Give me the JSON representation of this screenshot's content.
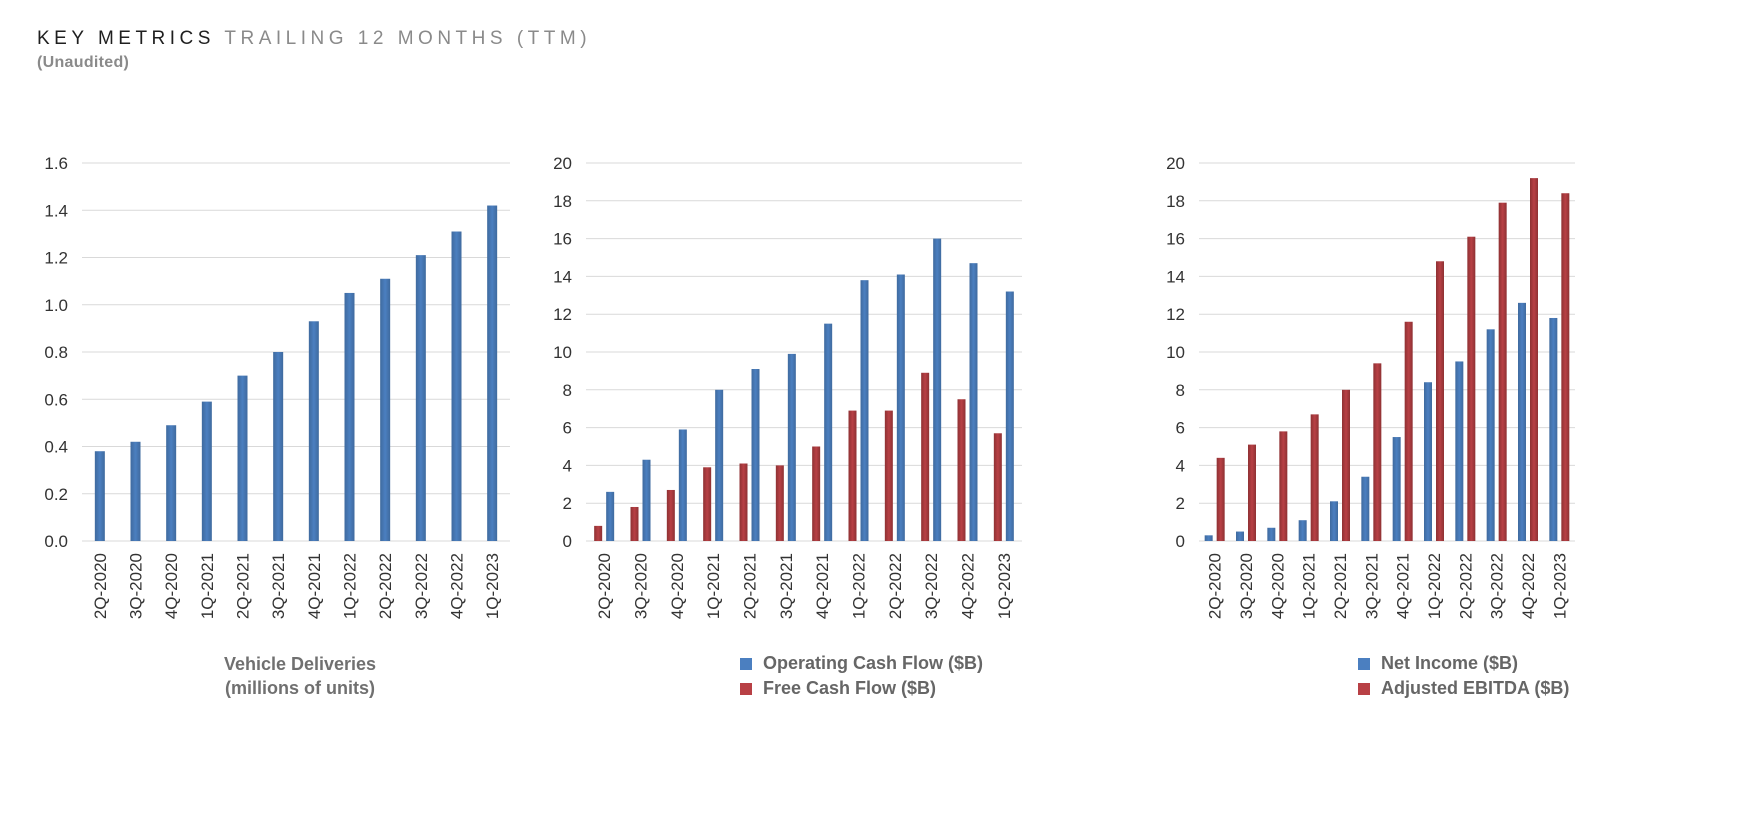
{
  "header": {
    "title_strong": "KEY METRICS",
    "title_light": "TRAILING 12 MONTHS (TTM)",
    "subtitle": "(Unaudited)"
  },
  "colors": {
    "blue": "#3f6a9e",
    "blue_light": "#4b7fc0",
    "red": "#8e3133",
    "red_light": "#b84045"
  },
  "chart_data": [
    {
      "type": "bar",
      "categories": [
        "2Q-2020",
        "3Q-2020",
        "4Q-2020",
        "1Q-2021",
        "2Q-2021",
        "3Q-2021",
        "4Q-2021",
        "1Q-2022",
        "2Q-2022",
        "3Q-2022",
        "4Q-2022",
        "1Q-2023"
      ],
      "series": [
        {
          "name": "Vehicle Deliveries (millions of units)",
          "values": [
            0.38,
            0.42,
            0.49,
            0.59,
            0.7,
            0.8,
            0.93,
            1.05,
            1.11,
            1.21,
            1.31,
            1.42
          ]
        }
      ],
      "ylim": [
        0,
        1.6
      ],
      "yticks": [
        "0.0",
        "0.2",
        "0.4",
        "0.6",
        "0.8",
        "1.0",
        "1.2",
        "1.4",
        "1.6"
      ],
      "caption": [
        "Vehicle Deliveries",
        "(millions of units)"
      ],
      "grid": true
    },
    {
      "type": "bar",
      "categories": [
        "2Q-2020",
        "3Q-2020",
        "4Q-2020",
        "1Q-2021",
        "2Q-2021",
        "3Q-2021",
        "4Q-2021",
        "1Q-2022",
        "2Q-2022",
        "3Q-2022",
        "4Q-2022",
        "1Q-2023"
      ],
      "series": [
        {
          "name": "Free Cash Flow ($B)",
          "values": [
            0.8,
            1.8,
            2.7,
            3.9,
            4.1,
            4.0,
            5.0,
            6.9,
            6.9,
            8.9,
            7.5,
            5.7
          ]
        },
        {
          "name": "Operating Cash Flow ($B)",
          "values": [
            2.6,
            4.3,
            5.9,
            8.0,
            9.1,
            9.9,
            11.5,
            13.8,
            14.1,
            16.0,
            14.7,
            13.2
          ]
        }
      ],
      "legend": [
        "Operating Cash Flow ($B)",
        "Free Cash Flow ($B)"
      ],
      "ylim": [
        0,
        20
      ],
      "yticks": [
        "0",
        "2",
        "4",
        "6",
        "8",
        "10",
        "12",
        "14",
        "16",
        "18",
        "20"
      ],
      "grid": true
    },
    {
      "type": "bar",
      "categories": [
        "2Q-2020",
        "3Q-2020",
        "4Q-2020",
        "1Q-2021",
        "2Q-2021",
        "3Q-2021",
        "4Q-2021",
        "1Q-2022",
        "2Q-2022",
        "3Q-2022",
        "4Q-2022",
        "1Q-2023"
      ],
      "series": [
        {
          "name": "Net Income ($B)",
          "values": [
            0.3,
            0.5,
            0.7,
            1.1,
            2.1,
            3.4,
            5.5,
            8.4,
            9.5,
            11.2,
            12.6,
            11.8
          ]
        },
        {
          "name": "Adjusted EBITDA ($B)",
          "values": [
            4.4,
            5.1,
            5.8,
            6.7,
            8.0,
            9.4,
            11.6,
            14.8,
            16.1,
            17.9,
            19.2,
            18.4
          ]
        }
      ],
      "legend": [
        "Net Income ($B)",
        "Adjusted EBITDA ($B)"
      ],
      "ylim": [
        0,
        20
      ],
      "yticks": [
        "0",
        "2",
        "4",
        "6",
        "8",
        "10",
        "12",
        "14",
        "16",
        "18",
        "20"
      ],
      "grid": true
    }
  ]
}
